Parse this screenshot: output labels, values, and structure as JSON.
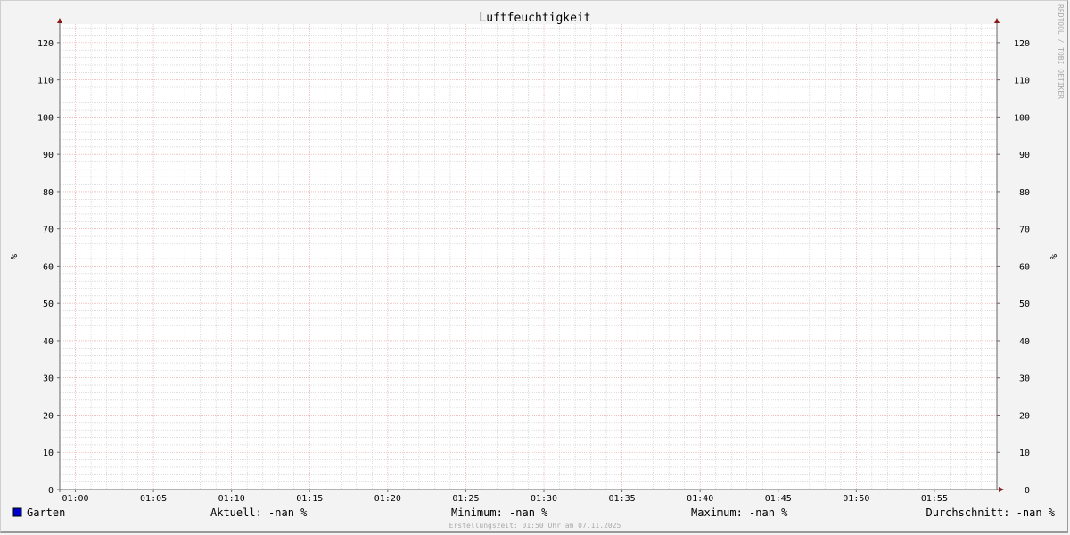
{
  "chart_data": {
    "type": "line",
    "title": "Luftfeuchtigkeit",
    "ylabel": "%",
    "ylabel_right": "%",
    "ylim": [
      0,
      125
    ],
    "yticks": [
      0,
      10,
      20,
      30,
      40,
      50,
      60,
      70,
      80,
      90,
      100,
      110,
      120
    ],
    "xlim": [
      "00:59",
      "01:59"
    ],
    "xticks": [
      "01:00",
      "01:05",
      "01:10",
      "01:15",
      "01:20",
      "01:25",
      "01:30",
      "01:35",
      "01:40",
      "01:45",
      "01:50",
      "01:55"
    ],
    "grid": true,
    "series": [
      {
        "name": "Garten",
        "color": "#0000cc",
        "values": []
      }
    ],
    "legend": {
      "series_name": "Garten",
      "current": "Aktuell: -nan %",
      "minimum": "Minimum: -nan %",
      "maximum": "Maximum: -nan %",
      "average": "Durchschnitt: -nan %"
    },
    "footer": "Erstellungszeit: 01:50 Uhr am 07.11.2025",
    "watermark": "RRDTOOL / TOBI OETIKER"
  },
  "colors": {
    "grid_minor": "#cccccc",
    "grid_major": "#e8a0a0",
    "axis": "#666666",
    "arrow": "#8b1a1a",
    "series": "#0000cc"
  }
}
